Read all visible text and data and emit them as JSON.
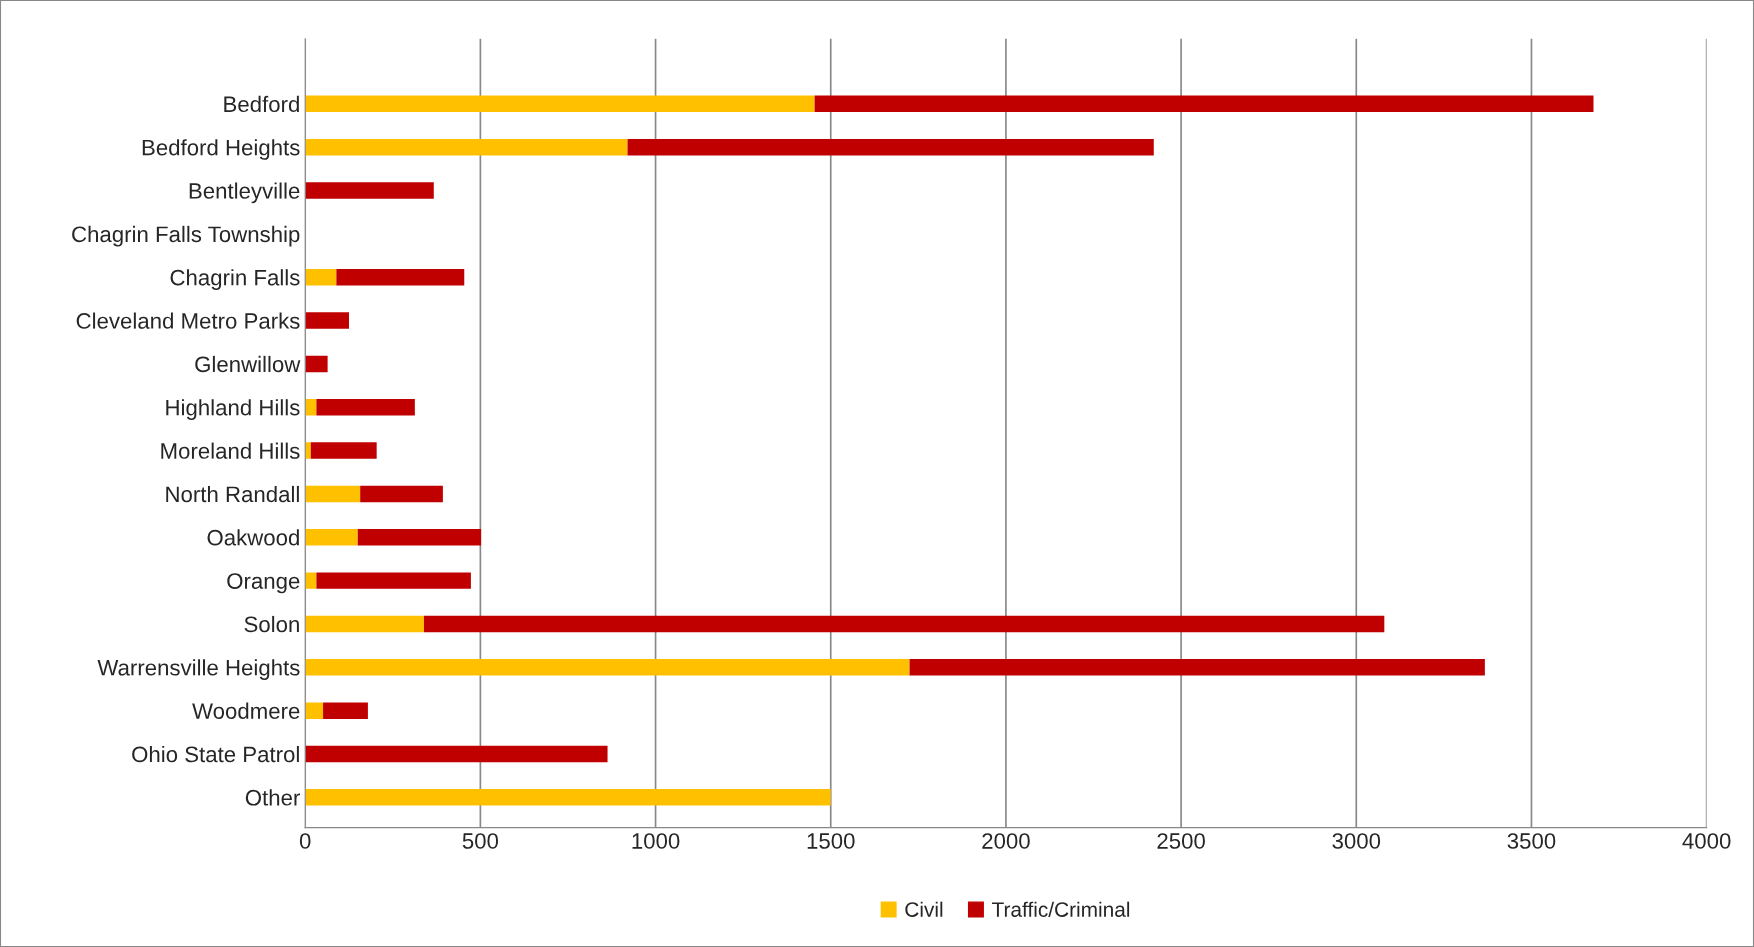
{
  "chart_data": {
    "type": "bar",
    "orientation": "horizontal",
    "stacked": true,
    "categories": [
      "Bedford",
      "Bedford Heights",
      "Bentleyville",
      "Chagrin Falls Township",
      "Chagrin Falls",
      "Cleveland Metro Parks",
      "Glenwillow",
      "Highland Hills",
      "Moreland Hills",
      "North Randall",
      "Oakwood",
      "Orange",
      "Solon",
      "Warrensville Heights",
      "Woodmere",
      "Ohio State Patrol",
      "Other"
    ],
    "series": [
      {
        "name": "Civil",
        "color": "#ffc000",
        "values": [
          1454,
          920,
          0,
          0,
          89,
          0,
          0,
          32,
          16,
          157,
          150,
          32,
          339,
          1725,
          51,
          0,
          1500
        ]
      },
      {
        "name": "Traffic/Criminal",
        "color": "#c00000",
        "values": [
          2223,
          1502,
          367,
          0,
          365,
          125,
          64,
          281,
          188,
          236,
          352,
          441,
          2741,
          1642,
          128,
          863,
          0
        ]
      }
    ],
    "xlim": [
      0,
      4000
    ],
    "xticks": [
      0,
      500,
      1000,
      1500,
      2000,
      2500,
      3000,
      3500,
      4000
    ],
    "grid": "x",
    "legend": "bottom"
  }
}
